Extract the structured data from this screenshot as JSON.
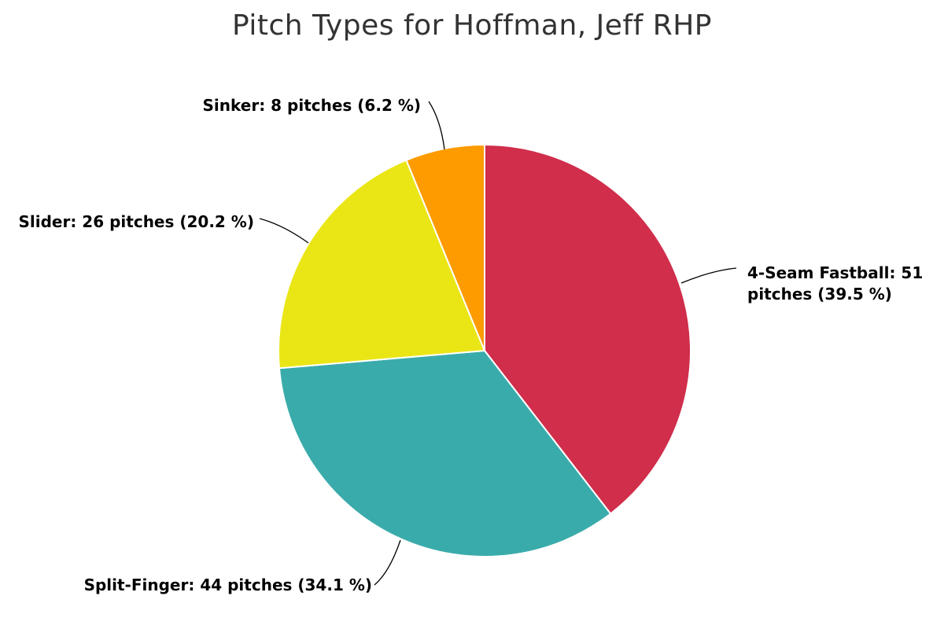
{
  "chart_data": {
    "type": "pie",
    "title": "Pitch Types for Hoffman, Jeff RHP",
    "slices": [
      {
        "name": "4-Seam Fastball",
        "value": 51,
        "percent": 39.5,
        "label_lines": [
          "4-Seam Fastball: 51",
          "pitches (39.5 %)"
        ],
        "color": "#d02e4b"
      },
      {
        "name": "Split-Finger",
        "value": 44,
        "percent": 34.1,
        "label_lines": [
          "Split-Finger: 44 pitches (34.1 %)"
        ],
        "color": "#3aabab"
      },
      {
        "name": "Slider",
        "value": 26,
        "percent": 20.2,
        "label_lines": [
          "Slider: 26 pitches (20.2 %)"
        ],
        "color": "#eae616"
      },
      {
        "name": "Sinker",
        "value": 8,
        "percent": 6.2,
        "label_lines": [
          "Sinker: 8 pitches (6.2 %)"
        ],
        "color": "#fd9b00"
      }
    ]
  }
}
